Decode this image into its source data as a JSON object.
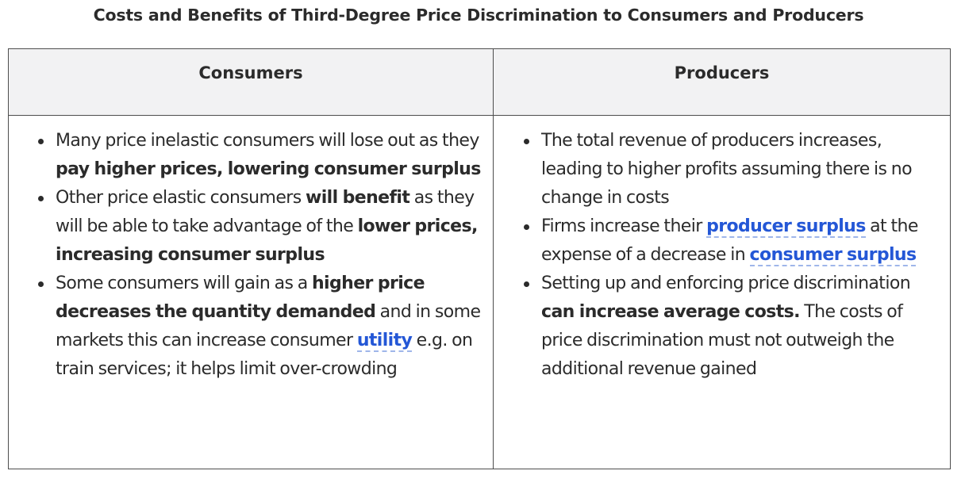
{
  "title": "Costs and Benefits of Third-Degree Price Discrimination to Consumers and Producers",
  "table": {
    "headers": [
      "Consumers",
      "Producers"
    ],
    "consumers": [
      {
        "t1": "Many price inelastic consumers will lose out as they ",
        "b1": "pay higher prices, lowering consumer surplus"
      },
      {
        "t1": "Other price elastic consumers ",
        "b1": "will benefit",
        "t2": " as they will be able to take advantage of the ",
        "b2": "lower prices, increasing consumer surplus"
      },
      {
        "t1": "Some consumers will gain as a ",
        "b1": "higher price decreases the quantity demanded",
        "t2": " and in some markets this can increase consumer ",
        "link1": "utility",
        "t3": " e.g. on train services; it helps limit over-crowding"
      }
    ],
    "producers": [
      {
        "t1": "The total revenue of producers increases, leading to higher profits assuming there is no change in costs"
      },
      {
        "t1": "Firms increase their ",
        "link1": "producer surplus",
        "t2": " at the expense of a decrease in ",
        "link2": "consumer surplus"
      },
      {
        "t1": "Setting up and enforcing price discrimination ",
        "b1": "can increase average costs.",
        "t2": " The costs of price discrimination must not outweigh the additional revenue gained"
      }
    ]
  },
  "colors": {
    "text": "#2b2b2b",
    "link": "#2457d6",
    "header_bg": "#f2f2f3",
    "border": "#4d4d4d"
  }
}
